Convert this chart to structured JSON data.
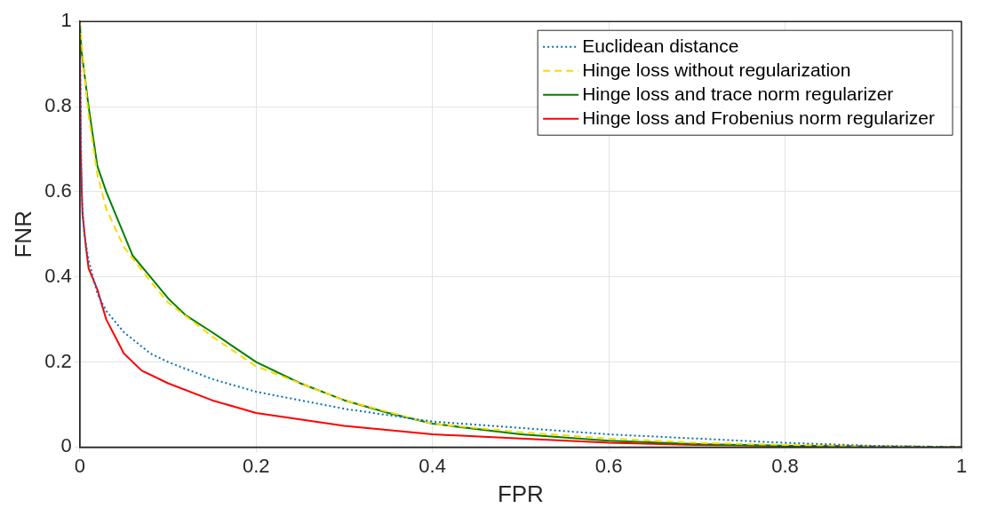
{
  "chart_data": {
    "type": "line",
    "xlabel": "FPR",
    "ylabel": "FNR",
    "xlim": [
      0,
      1
    ],
    "ylim": [
      0,
      1
    ],
    "xticks": [
      0,
      0.2,
      0.4,
      0.6,
      0.8,
      1
    ],
    "yticks": [
      0,
      0.2,
      0.4,
      0.6,
      0.8,
      1
    ],
    "grid": true,
    "legend": "top right",
    "marker": "none",
    "series": [
      {
        "name": "Euclidean distance",
        "color": "#0072bd",
        "line_style": "dotted",
        "x": [
          0,
          0.002,
          0.005,
          0.01,
          0.02,
          0.03,
          0.05,
          0.08,
          0.1,
          0.15,
          0.2,
          0.25,
          0.3,
          0.4,
          0.5,
          0.6,
          0.7,
          0.8,
          0.9,
          1
        ],
        "values": [
          1,
          0.6,
          0.5,
          0.44,
          0.36,
          0.32,
          0.27,
          0.22,
          0.2,
          0.16,
          0.13,
          0.11,
          0.09,
          0.06,
          0.045,
          0.03,
          0.02,
          0.01,
          0.003,
          0
        ]
      },
      {
        "name": "Hinge loss without regularization",
        "color": "#ffd700",
        "line_style": "dashed",
        "x": [
          0,
          0.005,
          0.01,
          0.02,
          0.03,
          0.05,
          0.08,
          0.1,
          0.15,
          0.2,
          0.25,
          0.3,
          0.4,
          0.5,
          0.6,
          0.7,
          0.8,
          1
        ],
        "values": [
          1,
          0.88,
          0.78,
          0.64,
          0.56,
          0.47,
          0.39,
          0.34,
          0.26,
          0.19,
          0.15,
          0.11,
          0.055,
          0.035,
          0.02,
          0.01,
          0.005,
          0
        ]
      },
      {
        "name": "Hinge loss and trace norm regularizer",
        "color": "#008000",
        "line_style": "solid",
        "x": [
          0,
          0.002,
          0.01,
          0.02,
          0.03,
          0.04,
          0.05,
          0.06,
          0.08,
          0.1,
          0.12,
          0.15,
          0.2,
          0.25,
          0.3,
          0.35,
          0.4,
          0.5,
          0.6,
          0.7,
          0.8,
          0.9,
          1
        ],
        "values": [
          1,
          0.93,
          0.8,
          0.66,
          0.6,
          0.55,
          0.5,
          0.45,
          0.4,
          0.35,
          0.31,
          0.27,
          0.2,
          0.15,
          0.11,
          0.08,
          0.055,
          0.03,
          0.015,
          0.007,
          0.003,
          0.001,
          0
        ]
      },
      {
        "name": "Hinge loss and Frobenius norm regularizer",
        "color": "#ff0000",
        "line_style": "solid",
        "x": [
          0,
          0.001,
          0.003,
          0.007,
          0.01,
          0.02,
          0.03,
          0.04,
          0.05,
          0.07,
          0.1,
          0.15,
          0.2,
          0.3,
          0.4,
          0.5,
          0.6,
          0.7,
          1
        ],
        "values": [
          1,
          0.7,
          0.55,
          0.47,
          0.42,
          0.37,
          0.3,
          0.26,
          0.22,
          0.18,
          0.15,
          0.11,
          0.08,
          0.05,
          0.03,
          0.02,
          0.01,
          0.005,
          0
        ]
      }
    ]
  }
}
